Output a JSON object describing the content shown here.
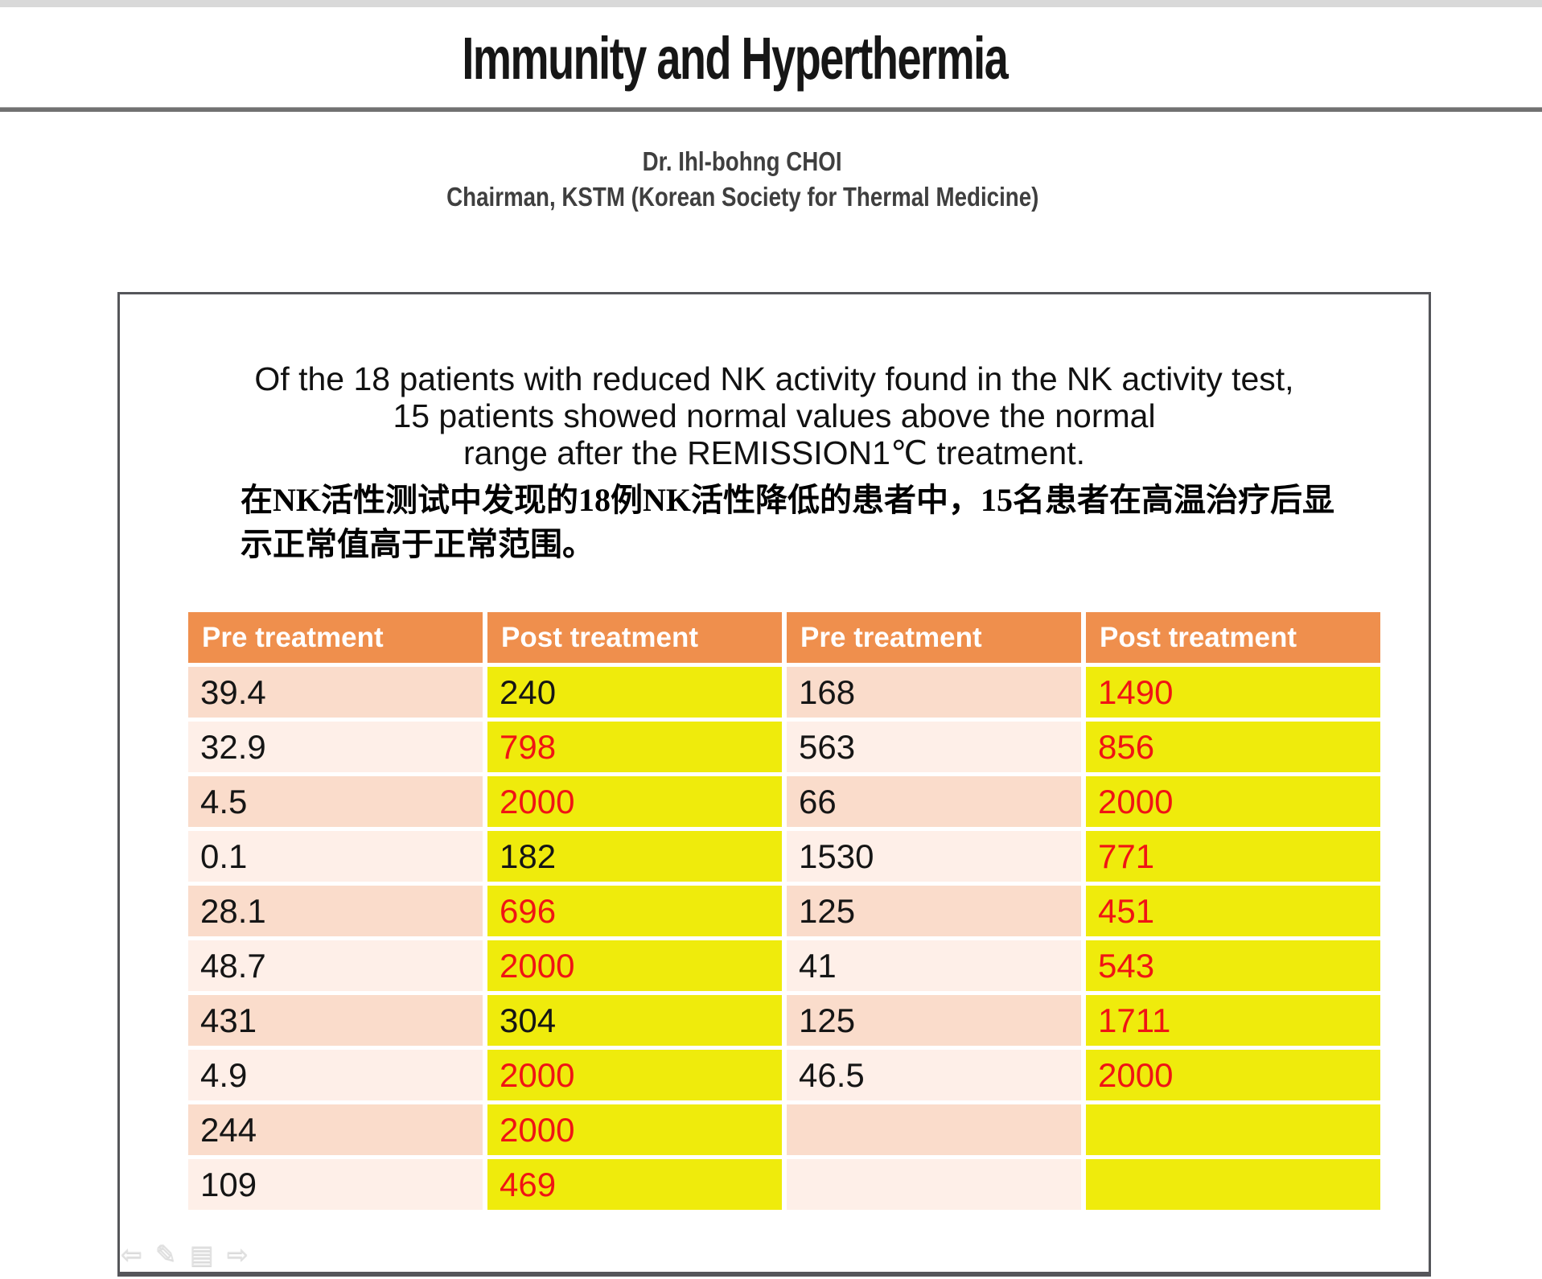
{
  "header": {
    "title": "Immunity and Hyperthermia",
    "author": "Dr. Ihl-bohng  CHOI",
    "affiliation": "Chairman, KSTM (Korean Society for Thermal Medicine)"
  },
  "summary": {
    "en_lines": [
      "Of the 18 patients with reduced NK activity found in the NK activity test,",
      "15 patients showed normal values above the normal",
      "range after the REMISSION1℃ treatment."
    ],
    "zh_lines": [
      "在NK活性测试中发现的18例NK活性降低的患者中，15名患者在高温治疗后显",
      "示正常值高于正常范围。"
    ]
  },
  "table": {
    "columns": [
      "Pre treatment",
      "Post treatment",
      "Pre treatment",
      "Post treatment"
    ],
    "rows": [
      [
        {
          "v": "39.4",
          "c": "black"
        },
        {
          "v": "240",
          "c": "black"
        },
        {
          "v": "168",
          "c": "black"
        },
        {
          "v": "1490",
          "c": "red"
        }
      ],
      [
        {
          "v": "32.9",
          "c": "black"
        },
        {
          "v": "798",
          "c": "red"
        },
        {
          "v": "563",
          "c": "black"
        },
        {
          "v": "856",
          "c": "red"
        }
      ],
      [
        {
          "v": "4.5",
          "c": "black"
        },
        {
          "v": "2000",
          "c": "red"
        },
        {
          "v": "66",
          "c": "black"
        },
        {
          "v": "2000",
          "c": "red"
        }
      ],
      [
        {
          "v": "0.1",
          "c": "black"
        },
        {
          "v": "182",
          "c": "black"
        },
        {
          "v": "1530",
          "c": "black"
        },
        {
          "v": "771",
          "c": "red"
        }
      ],
      [
        {
          "v": "28.1",
          "c": "black"
        },
        {
          "v": "696",
          "c": "red"
        },
        {
          "v": "125",
          "c": "black"
        },
        {
          "v": "451",
          "c": "red"
        }
      ],
      [
        {
          "v": "48.7",
          "c": "black"
        },
        {
          "v": "2000",
          "c": "red"
        },
        {
          "v": "41",
          "c": "black"
        },
        {
          "v": "543",
          "c": "red"
        }
      ],
      [
        {
          "v": "431",
          "c": "black"
        },
        {
          "v": "304",
          "c": "black"
        },
        {
          "v": "125",
          "c": "black"
        },
        {
          "v": "1711",
          "c": "red"
        }
      ],
      [
        {
          "v": "4.9",
          "c": "black"
        },
        {
          "v": "2000",
          "c": "red"
        },
        {
          "v": "46.5",
          "c": "black"
        },
        {
          "v": "2000",
          "c": "red"
        }
      ],
      [
        {
          "v": "244",
          "c": "black"
        },
        {
          "v": "2000",
          "c": "red"
        },
        {
          "v": "",
          "c": "black"
        },
        {
          "v": "",
          "c": "red"
        }
      ],
      [
        {
          "v": "109",
          "c": "black"
        },
        {
          "v": "469",
          "c": "red"
        },
        {
          "v": "",
          "c": "black"
        },
        {
          "v": "",
          "c": "red"
        }
      ]
    ]
  },
  "colors": {
    "header_bg": "#EF8F4D",
    "pre_cell_dark": "#FADCCB",
    "pre_cell_light": "#FEEFE8",
    "post_cell": "#EFEB0C",
    "red_text": "#F01414",
    "black_text": "#151515"
  },
  "nav": {
    "icons": [
      {
        "name": "prev-slide",
        "glyph": "⇦"
      },
      {
        "name": "pen-tool",
        "glyph": "✎"
      },
      {
        "name": "slide-menu",
        "glyph": "▤"
      },
      {
        "name": "next-slide",
        "glyph": "⇨"
      }
    ]
  }
}
